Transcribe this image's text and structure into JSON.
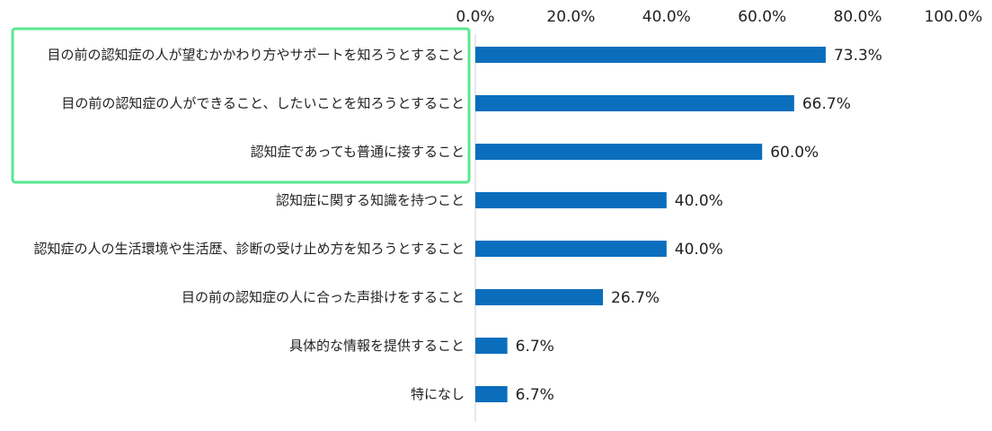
{
  "chart_data": {
    "type": "bar",
    "orientation": "horizontal",
    "title": "",
    "xlabel": "",
    "ylabel": "",
    "xlim": [
      0,
      100
    ],
    "x_ticks": [
      0,
      20,
      40,
      60,
      80,
      100
    ],
    "x_tick_labels": [
      "0.0%",
      "20.0%",
      "40.0%",
      "60.0%",
      "80.0%",
      "100.0%"
    ],
    "x_axis_position": "top",
    "grid": false,
    "legend": "none",
    "categories": [
      "目の前の認知症の人が望むかかわり方やサポートを知ろうとすること",
      "目の前の認知症の人ができること、したいことを知ろうとすること",
      "認知症であっても普通に接すること",
      "認知症に関する知識を持つこと",
      "認知症の人の生活環境や生活歴、診断の受け止め方を知ろうとすること",
      "目の前の認知症の人に合った声掛けをすること",
      "具体的な情報を提供すること",
      "特になし"
    ],
    "values": [
      73.3,
      66.7,
      60.0,
      40.0,
      40.0,
      26.7,
      6.7,
      6.7
    ],
    "value_labels": [
      "73.3%",
      "66.7%",
      "60.0%",
      "40.0%",
      "40.0%",
      "26.7%",
      "6.7%",
      "6.7%"
    ],
    "highlighted_categories": [
      0,
      1,
      2
    ]
  },
  "colors": {
    "bar": "#0a6ebd",
    "axis": "#d0d0d0",
    "highlight_border": "#58e88e",
    "text": "#222222"
  }
}
